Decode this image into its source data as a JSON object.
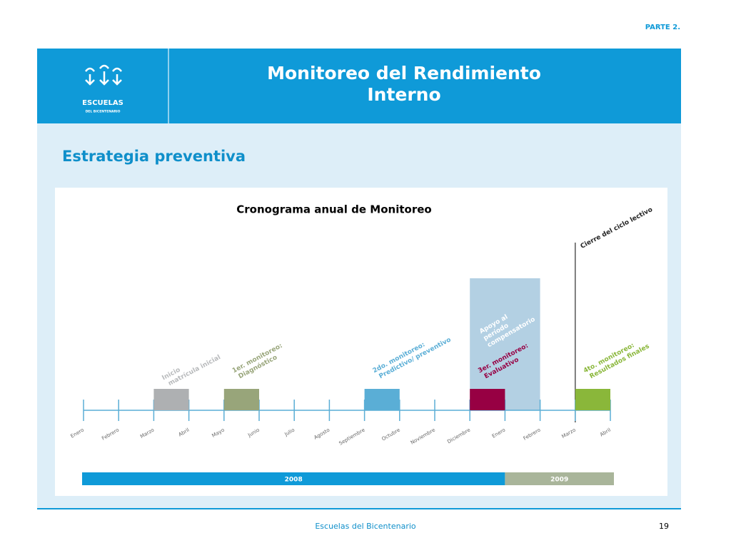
{
  "header": {
    "part": "PARTE 2.",
    "title": "Monitoreo del Rendimiento Interno",
    "logo_name": "ESCUELAS",
    "logo_sub": "DEL BICENTENARIO"
  },
  "section": "Estrategia preventiva",
  "diagram": {
    "title": "Cronograma anual de Monitoreo",
    "months": [
      "Enero",
      "Febrero",
      "Marzo",
      "Abril",
      "Mayo",
      "Junio",
      "Julio",
      "Agosto",
      "Septiembre",
      "Octubre",
      "Noviembre",
      "Diciembre",
      "Enero",
      "Febrero",
      "Marzo",
      "Abril"
    ],
    "events": [
      {
        "lines": [
          "Inicio",
          "matrícula inicial"
        ],
        "color": "#aeb0b2"
      },
      {
        "lines": [
          "1er. monitoreo:",
          "Diagnóstico"
        ],
        "color": "#98a57a"
      },
      {
        "lines": [
          "2do. monitoreo:",
          "Predictivo/ preventivo"
        ],
        "color": "#5aaed6"
      },
      {
        "lines": [
          "3er. monitoreo:",
          "Evaluativo"
        ],
        "color": "#970043"
      },
      {
        "lines": [
          "4to. monitoreo:",
          "Resultados finales"
        ],
        "color": "#8ab73a"
      }
    ],
    "support": {
      "lines": [
        "Apoyo al",
        "período",
        "compensatorio"
      ]
    },
    "close": "Cierre del ciclo lectivo",
    "years": [
      "2008",
      "2009"
    ]
  },
  "footer": {
    "text": "Escuelas del Bicentenario",
    "page": "19"
  }
}
